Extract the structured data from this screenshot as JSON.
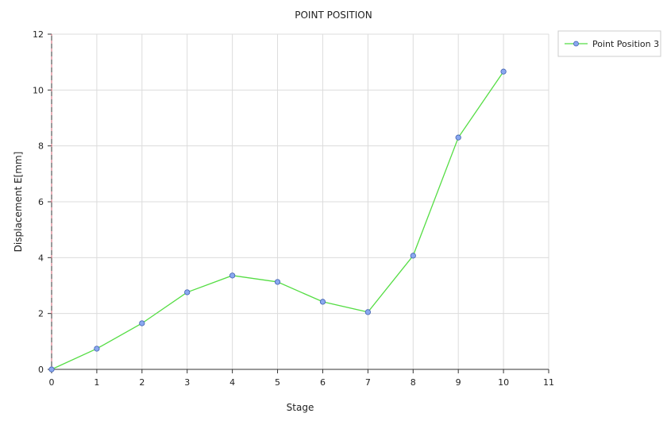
{
  "chart_data": {
    "type": "line",
    "title": "POINT POSITION",
    "xlabel": "Stage",
    "ylabel": "Displacement E[mm]",
    "xlim": [
      0,
      11
    ],
    "ylim": [
      0,
      12
    ],
    "xticks": [
      0,
      1,
      2,
      3,
      4,
      5,
      6,
      7,
      8,
      9,
      10,
      11
    ],
    "yticks": [
      0,
      2,
      4,
      6,
      8,
      10,
      12
    ],
    "grid": true,
    "legend_position": "top-right, outside plot",
    "series": [
      {
        "name": "Point Position 3",
        "line_color": "#55dd44",
        "marker_color": "#8aa8f0",
        "x": [
          0,
          1,
          2,
          3,
          4,
          5,
          6,
          7,
          8,
          9,
          10
        ],
        "y": [
          0,
          0.74,
          1.65,
          2.76,
          3.36,
          3.13,
          2.42,
          2.05,
          4.07,
          8.3,
          10.66
        ]
      }
    ]
  }
}
